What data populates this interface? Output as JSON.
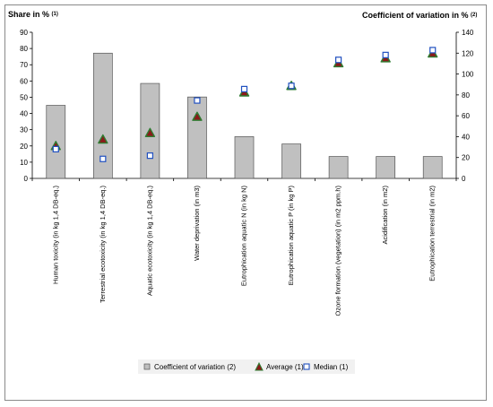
{
  "chart_data": {
    "type": "bar",
    "title": "",
    "ylabel_left": "Share in %",
    "ylabel_left_sup": "(1)",
    "ylabel_right": "Coefficient of variation in %",
    "ylabel_right_sup": "(2)",
    "ylim_left": [
      0,
      90
    ],
    "yticks_left": [
      "0",
      "10",
      "20",
      "30",
      "40",
      "50",
      "60",
      "70",
      "80",
      "90"
    ],
    "ylim_right": [
      0,
      140
    ],
    "yticks_right": [
      "0",
      "20",
      "40",
      "60",
      "80",
      "100",
      "120",
      "140"
    ],
    "grid": false,
    "legend_position": "bottom",
    "categories": [
      "Human toxicity (in kg 1,4 DB-eq.)",
      "Terrestrial ecotoxicity (in kg 1,4 DB-eq.)",
      "Aquatic ecotoxicity (in kg 1,4 DB-eq.)",
      "Water deprivation (in m3)",
      "Eutrophication aquatic N (in kg N)",
      "Eutrophication aquatic P (in kg P)",
      "Ozone formation (vegetation) (in m2 ppm.h)",
      "Acidification (in m2)",
      "Eutrophication terrestrial (in m2)"
    ],
    "series": [
      {
        "name": "Coefficient of variation (2)",
        "kind": "bar",
        "axis": "right",
        "color": "#c0c0c0",
        "values": [
          70,
          120,
          91,
          78,
          40,
          33,
          21,
          21,
          21
        ]
      },
      {
        "name": "Average (1)",
        "kind": "marker",
        "marker": "triangle",
        "axis": "left",
        "color": "#2e7d32",
        "values": [
          20,
          24,
          28,
          38,
          53,
          57,
          71,
          74,
          77
        ]
      },
      {
        "name": "Median (1)",
        "kind": "marker",
        "marker": "square",
        "axis": "left",
        "color": "#2050c0",
        "values": [
          18,
          12,
          14,
          48,
          55,
          57,
          73,
          76,
          79
        ]
      }
    ]
  }
}
